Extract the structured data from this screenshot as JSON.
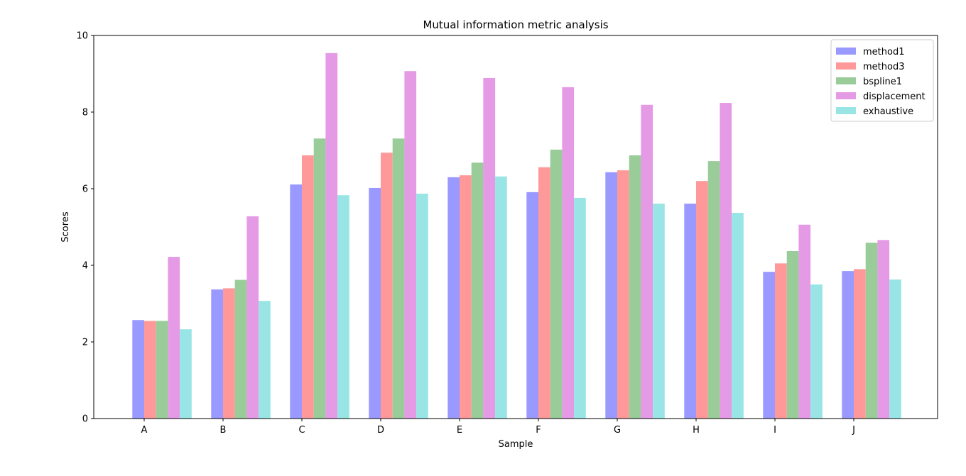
{
  "chart_data": {
    "type": "bar",
    "title": "Mutual information metric analysis",
    "xlabel": "Sample",
    "ylabel": "Scores",
    "ylim": [
      0,
      10
    ],
    "yticks": [
      0,
      2,
      4,
      6,
      8,
      10
    ],
    "grid": false,
    "legend_position": "top-right",
    "categories": [
      "A",
      "B",
      "C",
      "D",
      "E",
      "F",
      "G",
      "H",
      "I",
      "J"
    ],
    "series": [
      {
        "name": "method1",
        "color": "#9999ff",
        "values": [
          2.57,
          3.37,
          6.11,
          6.02,
          6.3,
          5.91,
          6.43,
          5.61,
          3.83,
          3.85
        ]
      },
      {
        "name": "method3",
        "color": "#ff9999",
        "values": [
          2.55,
          3.4,
          6.87,
          6.94,
          6.35,
          6.56,
          6.48,
          6.2,
          4.05,
          3.9
        ]
      },
      {
        "name": "bspline1",
        "color": "#99cc99",
        "values": [
          2.55,
          3.62,
          7.31,
          7.31,
          6.68,
          7.02,
          6.87,
          6.72,
          4.37,
          4.59
        ]
      },
      {
        "name": "displacement",
        "color": "#e59ae5",
        "values": [
          4.22,
          5.28,
          9.54,
          9.07,
          8.89,
          8.65,
          8.19,
          8.24,
          5.06,
          4.66
        ]
      },
      {
        "name": "exhaustive",
        "color": "#99e5e5",
        "values": [
          2.33,
          3.07,
          5.83,
          5.87,
          6.32,
          5.76,
          5.61,
          5.37,
          3.5,
          3.63
        ]
      }
    ]
  }
}
